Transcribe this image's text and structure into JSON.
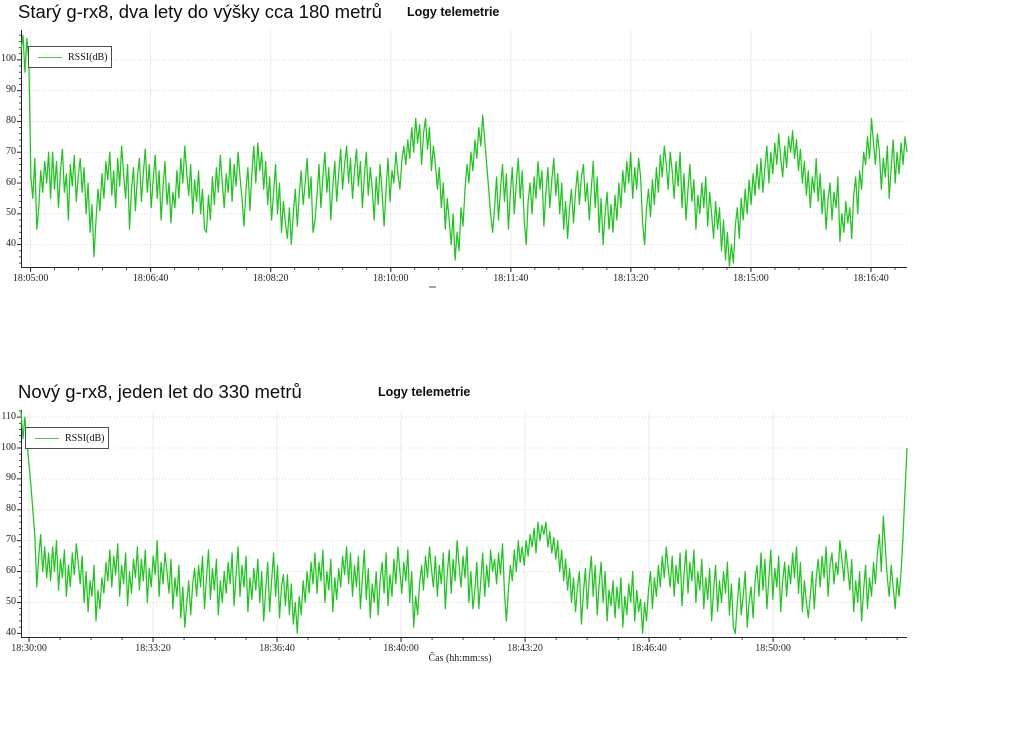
{
  "chart_data": [
    {
      "type": "line",
      "title": "Starý g-rx8, dva lety do výšky cca 180 metrů",
      "subtitle": "Logy telemetrie",
      "legend_label": "RSSI(dB)",
      "xlabel": "",
      "ylabel": "",
      "line_color": "#1ec51e",
      "axis_color": "#262626",
      "grid_color_h": "#d8d8d8",
      "grid_color_v": "#ececec",
      "ylim": [
        32.4,
        109.7
      ],
      "yticks": [
        40,
        50,
        60,
        70,
        80,
        90,
        100
      ],
      "t_range": [
        -8,
        730
      ],
      "minor_dt": 20,
      "xticks": [
        {
          "label": "18:05:00",
          "t": 0
        },
        {
          "label": "18:06:40",
          "t": 100
        },
        {
          "label": "18:08:20",
          "t": 200
        },
        {
          "label": "18:10:00",
          "t": 300
        },
        {
          "label": "18:11:40",
          "t": 400
        },
        {
          "label": "18:13:20",
          "t": 500
        },
        {
          "label": "18:15:00",
          "t": 600
        },
        {
          "label": "18:16:40",
          "t": 700
        }
      ],
      "values": [
        103,
        108,
        96,
        107,
        99,
        62,
        55,
        68,
        45,
        52,
        64,
        57,
        67,
        60,
        70,
        55,
        70,
        58,
        67,
        52,
        64,
        71,
        57,
        63,
        48,
        66,
        59,
        69,
        54,
        62,
        68,
        57,
        65,
        50,
        60,
        44,
        53,
        36,
        48,
        58,
        51,
        63,
        55,
        67,
        61,
        70,
        56,
        64,
        52,
        68,
        59,
        72,
        63,
        55,
        66,
        45,
        58,
        65,
        51,
        62,
        68,
        54,
        63,
        71,
        57,
        66,
        52,
        61,
        69,
        55,
        64,
        48,
        59,
        67,
        53,
        60,
        47,
        57,
        52,
        64,
        55,
        68,
        60,
        72,
        63,
        56,
        66,
        50,
        61,
        54,
        64,
        50,
        58,
        45,
        44,
        56,
        48,
        62,
        53,
        65,
        57,
        69,
        60,
        52,
        63,
        57,
        68,
        54,
        66,
        59,
        70,
        62,
        55,
        46,
        58,
        65,
        51,
        63,
        72,
        60,
        73,
        64,
        70,
        58,
        67,
        53,
        62,
        48,
        57,
        66,
        50,
        60,
        44,
        54,
        47,
        42,
        52,
        40,
        50,
        58,
        46,
        56,
        64,
        53,
        60,
        68,
        55,
        62,
        44,
        48,
        56,
        66,
        52,
        62,
        70,
        57,
        65,
        48,
        59,
        67,
        54,
        63,
        71,
        58,
        66,
        72,
        60,
        68,
        55,
        64,
        71,
        59,
        67,
        52,
        62,
        70,
        56,
        65,
        58,
        48,
        62,
        53,
        66,
        57,
        46,
        58,
        68,
        54,
        64,
        60,
        70,
        63,
        58,
        67,
        72,
        66,
        74,
        68,
        78,
        70,
        81,
        73,
        79,
        66,
        76,
        81,
        71,
        78,
        64,
        72,
        66,
        58,
        65,
        52,
        60,
        45,
        55,
        48,
        40,
        50,
        35,
        44,
        38,
        52,
        46,
        58,
        66,
        60,
        70,
        64,
        74,
        68,
        78,
        72,
        82,
        74,
        66,
        58,
        50,
        44,
        52,
        62,
        48,
        58,
        66,
        54,
        63,
        45,
        57,
        65,
        50,
        60,
        68,
        55,
        64,
        48,
        40,
        54,
        60,
        50,
        62,
        55,
        67,
        58,
        64,
        46,
        57,
        65,
        52,
        61,
        68,
        56,
        63,
        50,
        60,
        45,
        54,
        42,
        52,
        58,
        47,
        57,
        64,
        53,
        62,
        66,
        54,
        60,
        48,
        58,
        67,
        52,
        62,
        44,
        55,
        40,
        50,
        57,
        45,
        53,
        44,
        56,
        48,
        60,
        52,
        64,
        57,
        67,
        60,
        70,
        55,
        65,
        58,
        68,
        62,
        47,
        40,
        52,
        58,
        49,
        61,
        53,
        65,
        57,
        69,
        62,
        72,
        66,
        58,
        70,
        64,
        55,
        67,
        59,
        70,
        52,
        63,
        48,
        58,
        66,
        54,
        61,
        45,
        56,
        50,
        60,
        52,
        62,
        46,
        57,
        50,
        42,
        54,
        45,
        52,
        38,
        48,
        35,
        44,
        33,
        40,
        34,
        46,
        52,
        42,
        55,
        48,
        58,
        50,
        61,
        53,
        63,
        56,
        66,
        58,
        68,
        57,
        65,
        72,
        60,
        70,
        63,
        73,
        66,
        76,
        68,
        62,
        72,
        65,
        75,
        70,
        77,
        68,
        74,
        64,
        71,
        60,
        67,
        56,
        64,
        52,
        62,
        57,
        68,
        54,
        63,
        50,
        58,
        45,
        55,
        60,
        48,
        57,
        52,
        62,
        41,
        50,
        44,
        54,
        47,
        52,
        42,
        56,
        62,
        50,
        64,
        58,
        70,
        66,
        75,
        68,
        81,
        73,
        66,
        76,
        70,
        58,
        68,
        62,
        72,
        55,
        65,
        74,
        60,
        70,
        63,
        73,
        66,
        75,
        70
      ]
    },
    {
      "type": "line",
      "title": "Nový g-rx8, jeden let do 330 metrů",
      "subtitle": "Logy telemetrie",
      "legend_label": "RSSI(dB)",
      "xlabel": "Čas (hh:mm:ss)",
      "ylabel": "",
      "line_color": "#1ec51e",
      "axis_color": "#262626",
      "grid_color_h": "#d8d8d8",
      "grid_color_v": "#ececec",
      "ylim": [
        38.5,
        112.3
      ],
      "yticks": [
        40,
        50,
        60,
        70,
        80,
        90,
        100,
        110
      ],
      "t_range": [
        -13,
        1416
      ],
      "minor_dt": 50,
      "xticks": [
        {
          "label": "18:30:00",
          "t": 0
        },
        {
          "label": "18:33:20",
          "t": 200
        },
        {
          "label": "18:36:40",
          "t": 400
        },
        {
          "label": "18:40:00",
          "t": 600
        },
        {
          "label": "18:43:20",
          "t": 800
        },
        {
          "label": "18:46:40",
          "t": 1000
        },
        {
          "label": "18:50:00",
          "t": 1200
        }
      ],
      "values": [
        112,
        103,
        110,
        102,
        95,
        88,
        80,
        72,
        55,
        65,
        72,
        60,
        68,
        58,
        66,
        57,
        68,
        60,
        70,
        54,
        64,
        58,
        67,
        52,
        62,
        55,
        66,
        59,
        69,
        63,
        56,
        65,
        50,
        60,
        47,
        57,
        52,
        62,
        44,
        54,
        48,
        58,
        53,
        63,
        57,
        67,
        55,
        65,
        59,
        69,
        52,
        62,
        56,
        66,
        49,
        60,
        53,
        64,
        58,
        68,
        54,
        64,
        57,
        67,
        50,
        61,
        55,
        65,
        59,
        70,
        52,
        63,
        56,
        66,
        60,
        53,
        64,
        48,
        58,
        52,
        62,
        45,
        55,
        42,
        50,
        57,
        46,
        56,
        61,
        52,
        62,
        55,
        65,
        48,
        58,
        67,
        51,
        61,
        54,
        64,
        46,
        57,
        50,
        60,
        53,
        63,
        56,
        66,
        49,
        59,
        68,
        52,
        62,
        55,
        65,
        47,
        58,
        51,
        61,
        54,
        64,
        50,
        60,
        44,
        54,
        63,
        47,
        57,
        66,
        52,
        62,
        45,
        55,
        59,
        49,
        59,
        46,
        56,
        43,
        50,
        40,
        52,
        46,
        57,
        50,
        60,
        53,
        63,
        56,
        66,
        53,
        63,
        57,
        67,
        50,
        60,
        54,
        64,
        47,
        58,
        51,
        61,
        55,
        65,
        59,
        68,
        56,
        66,
        52,
        62,
        55,
        65,
        48,
        58,
        67,
        51,
        61,
        45,
        56,
        50,
        60,
        46,
        57,
        63,
        53,
        66,
        49,
        59,
        52,
        64,
        56,
        68,
        60,
        53,
        63,
        57,
        67,
        50,
        60,
        42,
        52,
        46,
        56,
        62,
        54,
        65,
        58,
        68,
        61,
        55,
        65,
        52,
        62,
        56,
        66,
        48,
        59,
        67,
        53,
        64,
        57,
        70,
        62,
        55,
        65,
        58,
        68,
        50,
        60,
        48,
        54,
        63,
        48,
        57,
        66,
        52,
        62,
        55,
        67,
        60,
        64,
        56,
        66,
        59,
        69,
        53,
        44,
        54,
        62,
        57,
        67,
        60,
        70,
        63,
        68,
        62,
        70,
        65,
        72,
        68,
        74,
        66,
        76,
        70,
        75,
        72,
        76,
        68,
        73,
        66,
        71,
        64,
        70,
        60,
        67,
        57,
        64,
        54,
        61,
        50,
        58,
        47,
        55,
        60,
        43,
        53,
        61,
        48,
        58,
        65,
        52,
        62,
        46,
        56,
        63,
        50,
        60,
        44,
        54,
        49,
        57,
        45,
        55,
        48,
        58,
        42,
        52,
        46,
        56,
        50,
        60,
        44,
        54,
        47,
        51,
        40,
        50,
        44,
        54,
        60,
        48,
        58,
        52,
        62,
        55,
        65,
        58,
        68,
        61,
        55,
        65,
        52,
        62,
        56,
        66,
        49,
        59,
        67,
        53,
        63,
        57,
        67,
        50,
        60,
        54,
        64,
        48,
        58,
        51,
        61,
        44,
        54,
        62,
        47,
        57,
        50,
        60,
        53,
        63,
        46,
        56,
        42,
        40,
        50,
        58,
        46,
        52,
        60,
        42,
        50,
        55,
        45,
        57,
        62,
        52,
        66,
        54,
        64,
        48,
        58,
        67,
        51,
        61,
        55,
        65,
        47,
        57,
        63,
        52,
        62,
        56,
        66,
        58,
        68,
        53,
        63,
        47,
        57,
        50,
        45,
        52,
        60,
        48,
        58,
        64,
        55,
        65,
        58,
        68,
        52,
        62,
        66,
        56,
        63,
        59,
        70,
        64,
        57,
        67,
        61,
        54,
        64,
        47,
        57,
        50,
        60,
        44,
        54,
        62,
        48,
        58,
        52,
        63,
        56,
        66,
        72,
        60,
        78,
        68,
        58,
        52,
        62,
        55,
        48,
        58,
        52,
        60,
        72,
        86,
        100
      ]
    }
  ]
}
